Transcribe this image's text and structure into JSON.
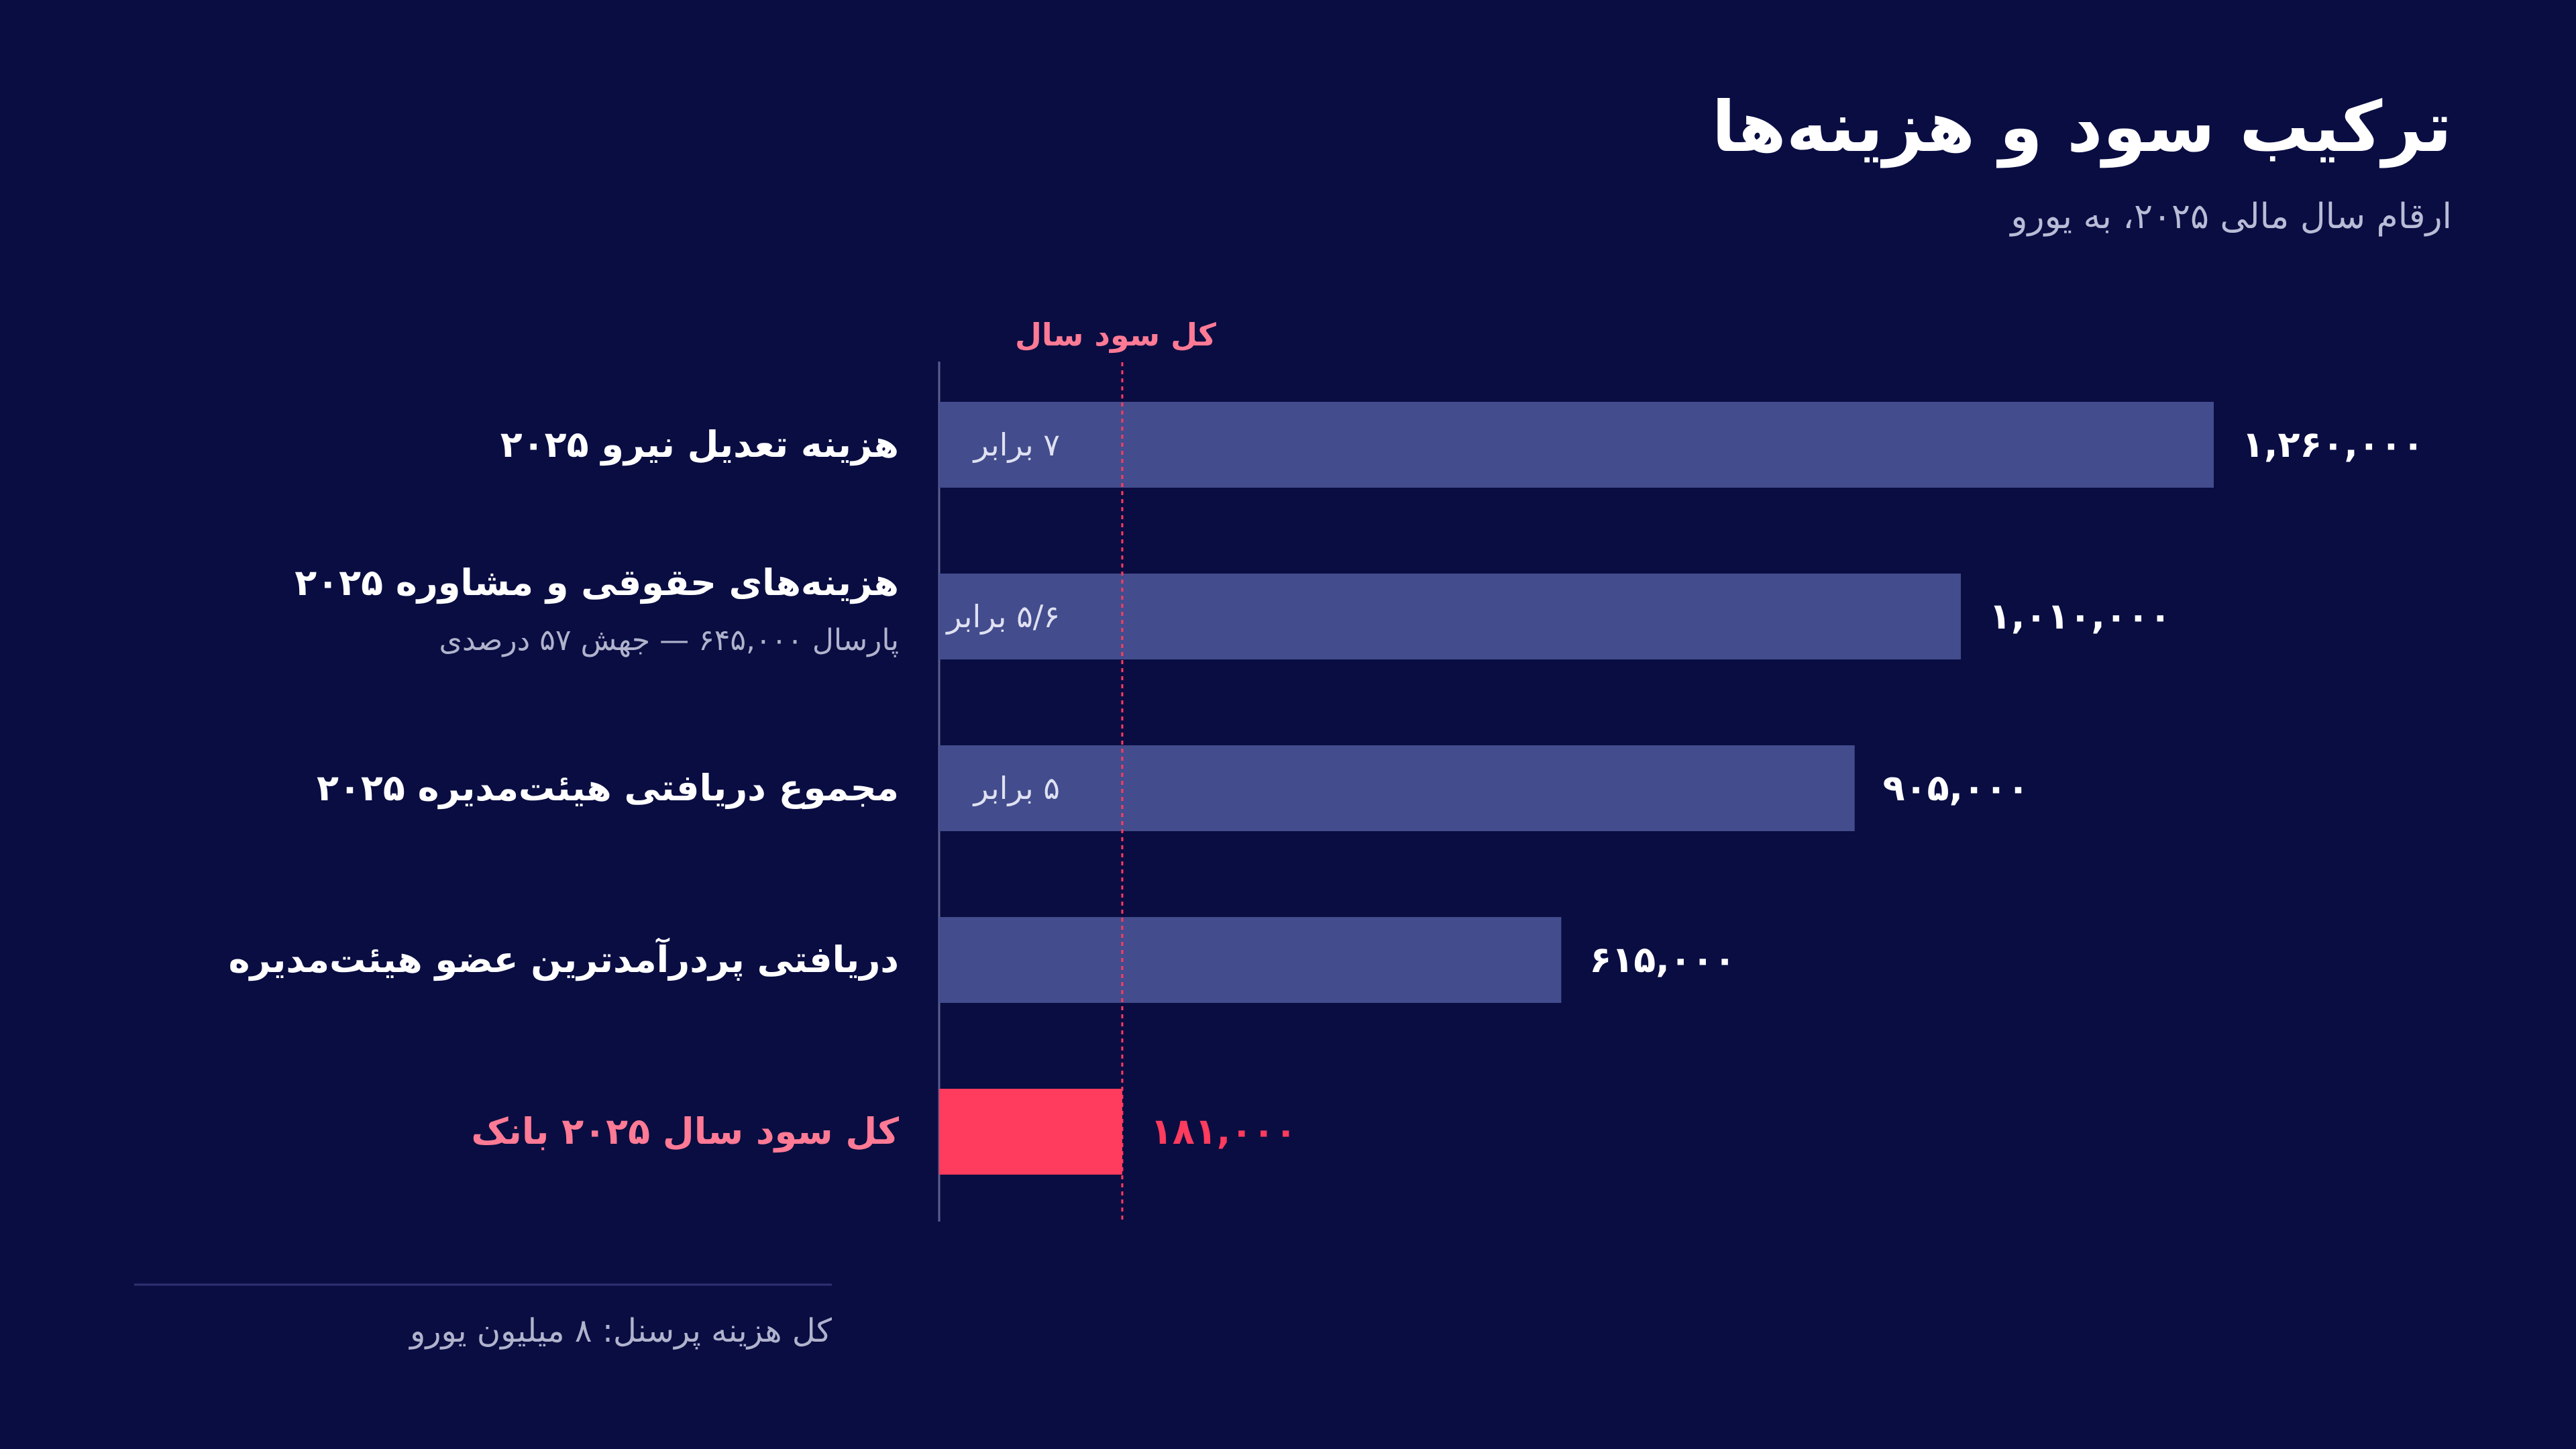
{
  "colors": {
    "background": "#0a0d42",
    "bar": "#434c8c",
    "highlight": "#ff3b5e",
    "highlight_text": "#ff7a95",
    "axis": "#5a5f8f",
    "muted_text": "#b0b3cc"
  },
  "chart_data": {
    "type": "bar",
    "orientation": "horizontal",
    "title": "ترکیب سود و هزینه‌ها",
    "subtitle": "ارقام سال مالی ۲۰۲۵، به یورو",
    "xlim": [
      0,
      1400000
    ],
    "grid": false,
    "reference_line": {
      "value": 181000,
      "label": "کل سود سال"
    },
    "categories": [
      {
        "label": "هزینه تعدیل نیرو ۲۰۲۵",
        "sublabel": "",
        "value": 1260000,
        "value_label": "۱,۲۶۰,۰۰۰",
        "multiple_label": "۷ برابر",
        "highlight": false
      },
      {
        "label": "هزینه‌های حقوقی و مشاوره ۲۰۲۵",
        "sublabel": "پارسال ۶۴۵,۰۰۰ — جهش ۵۷ درصدی",
        "value": 1010000,
        "value_label": "۱,۰۱۰,۰۰۰",
        "multiple_label": "۵/۶ برابر",
        "highlight": false
      },
      {
        "label": "مجموع دریافتی هیئت‌مدیره ۲۰۲۵",
        "sublabel": "",
        "value": 905000,
        "value_label": "۹۰۵,۰۰۰",
        "multiple_label": "۵ برابر",
        "highlight": false
      },
      {
        "label": "دریافتی پردرآمدترین عضو هیئت‌مدیره",
        "sublabel": "",
        "value": 615000,
        "value_label": "۶۱۵,۰۰۰",
        "multiple_label": "",
        "highlight": false
      },
      {
        "label": "کل سود سال ۲۰۲۵ بانک",
        "sublabel": "",
        "value": 181000,
        "value_label": "۱۸۱,۰۰۰",
        "multiple_label": "",
        "highlight": true
      }
    ],
    "footnote": "کل هزینه پرسنل: ۸ میلیون یورو"
  }
}
